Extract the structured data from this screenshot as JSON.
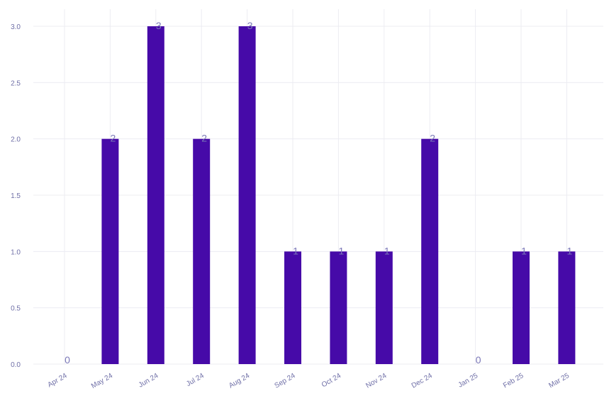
{
  "chart_data": {
    "type": "bar",
    "categories": [
      "Apr 24",
      "May 24",
      "Jun 24",
      "Jul 24",
      "Aug 24",
      "Sep 24",
      "Oct 24",
      "Nov 24",
      "Dec 24",
      "Jan 25",
      "Feb 25",
      "Mar 25"
    ],
    "values": [
      0,
      2,
      3,
      2,
      3,
      1,
      1,
      1,
      2,
      0,
      1,
      1
    ],
    "data_labels": [
      "0",
      "2",
      "3",
      "2",
      "3",
      "1",
      "1",
      "1",
      "2",
      "0",
      "1",
      "1"
    ],
    "yticks": [
      "0.0",
      "0.5",
      "1.0",
      "1.5",
      "2.0",
      "2.5",
      "3.0"
    ],
    "ylim": [
      0,
      3
    ],
    "grid": true,
    "legend": "none",
    "colors": {
      "bar": "#460aa8",
      "label_text": "#7b78b8",
      "tick_text": "#6f6fa7",
      "grid": "#ececf2"
    }
  }
}
